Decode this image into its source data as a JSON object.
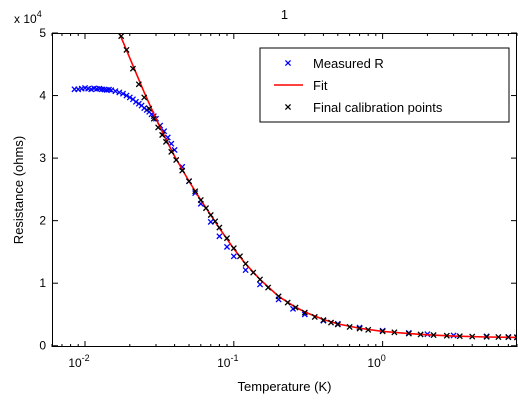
{
  "chart_data": {
    "type": "scatter",
    "title": "1",
    "xlabel": "Temperature (K)",
    "ylabel": "Resistance (ohms)",
    "x_scale": "log",
    "xlim": [
      0.006,
      8
    ],
    "ylim": [
      -200,
      50000
    ],
    "y_multiplier_label": "x 10",
    "y_multiplier_exponent": "4",
    "x_ticks": [
      {
        "value": 0.01,
        "base": "10",
        "exp": "-2"
      },
      {
        "value": 0.1,
        "base": "10",
        "exp": "-1"
      },
      {
        "value": 1,
        "base": "10",
        "exp": "0"
      }
    ],
    "y_ticks": [
      {
        "value": 0,
        "label": "0"
      },
      {
        "value": 10000,
        "label": "1"
      },
      {
        "value": 20000,
        "label": "2"
      },
      {
        "value": 30000,
        "label": "3"
      },
      {
        "value": 40000,
        "label": "4"
      },
      {
        "value": 50000,
        "label": "5"
      }
    ],
    "legend_position": "top-right",
    "grid": false,
    "colors": {
      "measured": "#0000ff",
      "fit": "#ff0000",
      "calibration": "#000000"
    },
    "series": [
      {
        "name": "Measured R",
        "style": "x-marker",
        "x": [
          0.0085,
          0.009,
          0.0095,
          0.01,
          0.0105,
          0.011,
          0.0115,
          0.012,
          0.0125,
          0.013,
          0.0135,
          0.014,
          0.0145,
          0.015,
          0.016,
          0.017,
          0.018,
          0.019,
          0.02,
          0.021,
          0.022,
          0.023,
          0.024,
          0.025,
          0.026,
          0.027,
          0.028,
          0.029,
          0.03,
          0.032,
          0.034,
          0.036,
          0.038,
          0.04,
          0.045,
          0.05,
          0.055,
          0.06,
          0.07,
          0.08,
          0.09,
          0.1,
          0.12,
          0.15,
          0.2,
          0.25,
          0.3,
          0.4,
          0.5,
          0.7,
          1.0,
          1.5,
          2.0,
          3.0,
          5.0,
          7.0,
          8.0
        ],
        "y": [
          41000,
          41000,
          41100,
          41200,
          41100,
          41000,
          41150,
          41050,
          41100,
          41000,
          40950,
          40900,
          40950,
          40850,
          40700,
          40500,
          40300,
          40000,
          39700,
          39400,
          39000,
          38700,
          38400,
          38000,
          37700,
          37400,
          37000,
          36700,
          36300,
          35200,
          34300,
          33300,
          32300,
          31300,
          28600,
          26300,
          24400,
          22700,
          19800,
          17500,
          15800,
          14300,
          12100,
          9800,
          7400,
          5900,
          5000,
          4000,
          3500,
          2900,
          2400,
          2050,
          1850,
          1650,
          1500,
          1400,
          1380
        ]
      },
      {
        "name": "Fit",
        "style": "line",
        "x": [
          0.017,
          0.02,
          0.025,
          0.03,
          0.035,
          0.04,
          0.05,
          0.06,
          0.07,
          0.08,
          0.1,
          0.12,
          0.15,
          0.2,
          0.25,
          0.3,
          0.4,
          0.5,
          0.7,
          1.0,
          1.5,
          2.0,
          3.0,
          5.0,
          8.0
        ],
        "y": [
          50000,
          46000,
          40500,
          36300,
          33000,
          30300,
          26300,
          23300,
          20900,
          18800,
          15500,
          13100,
          10600,
          7900,
          6400,
          5400,
          4200,
          3500,
          2800,
          2300,
          1950,
          1750,
          1550,
          1400,
          1330
        ]
      },
      {
        "name": "Final calibration points",
        "style": "x-marker",
        "x": [
          0.0175,
          0.019,
          0.021,
          0.023,
          0.025,
          0.027,
          0.029,
          0.031,
          0.033,
          0.035,
          0.038,
          0.041,
          0.045,
          0.05,
          0.055,
          0.06,
          0.065,
          0.07,
          0.075,
          0.08,
          0.09,
          0.1,
          0.11,
          0.12,
          0.135,
          0.15,
          0.17,
          0.2,
          0.23,
          0.26,
          0.3,
          0.35,
          0.4,
          0.45,
          0.5,
          0.6,
          0.7,
          0.8,
          1.0,
          1.2,
          1.5,
          1.8,
          2.2,
          2.7,
          3.3,
          4.0,
          5.0,
          6.0,
          7.0,
          8.0
        ],
        "y": [
          49500,
          47300,
          44300,
          41800,
          39700,
          37900,
          36300,
          34900,
          33700,
          32600,
          31000,
          29700,
          28000,
          26300,
          24700,
          23300,
          22000,
          20900,
          19900,
          18900,
          17200,
          15600,
          14300,
          13100,
          11700,
          10600,
          9300,
          7900,
          6900,
          6100,
          5300,
          4600,
          4100,
          3700,
          3400,
          3000,
          2750,
          2550,
          2300,
          2150,
          1950,
          1800,
          1700,
          1600,
          1520,
          1470,
          1420,
          1390,
          1360,
          1330
        ]
      }
    ]
  }
}
